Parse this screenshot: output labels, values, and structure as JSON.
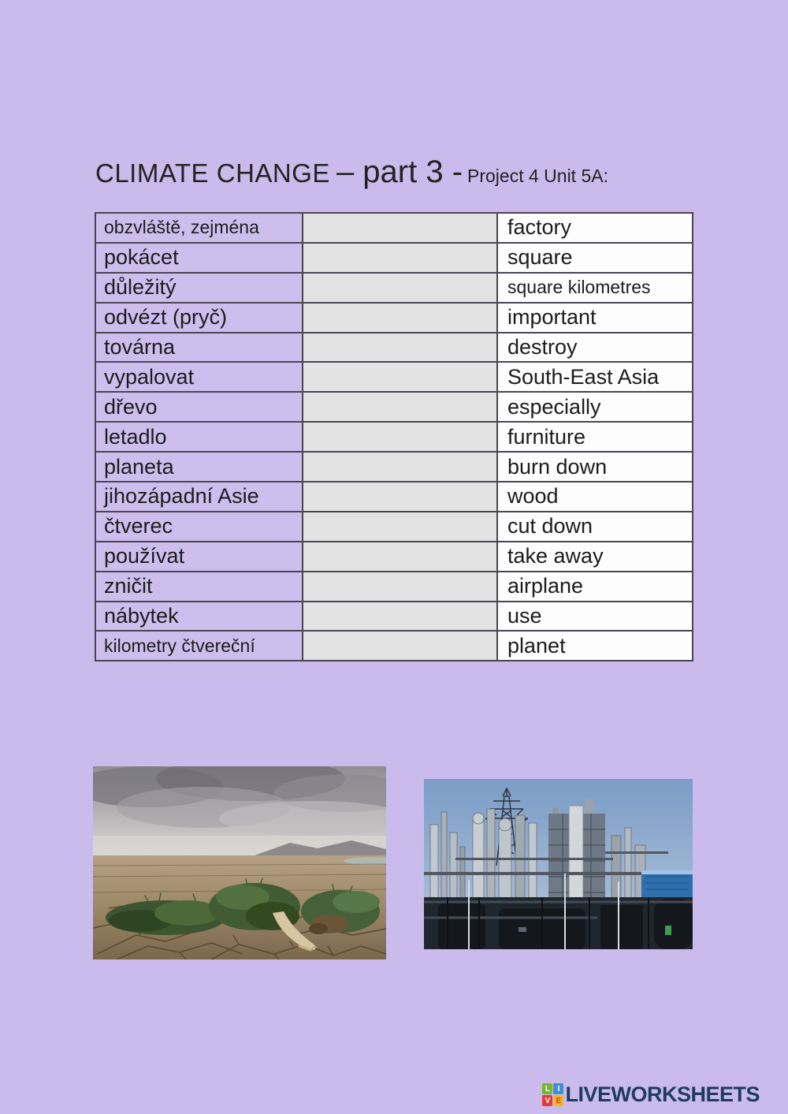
{
  "title": {
    "main": "CLIMATE CHANGE",
    "part": "– part 3 -",
    "subtitle": "Project 4 Unit 5A:"
  },
  "vocab_table": {
    "rows": [
      {
        "czech": "obzvláště, zejména",
        "answer": "",
        "english": "factory",
        "czech_small": true,
        "english_small": false
      },
      {
        "czech": "pokácet",
        "answer": "",
        "english": "square",
        "czech_small": false,
        "english_small": false
      },
      {
        "czech": "důležitý",
        "answer": "",
        "english": "square kilometres",
        "czech_small": false,
        "english_small": true
      },
      {
        "czech": "odvézt (pryč)",
        "answer": "",
        "english": "important",
        "czech_small": false,
        "english_small": false
      },
      {
        "czech": "továrna",
        "answer": "",
        "english": "destroy",
        "czech_small": false,
        "english_small": false
      },
      {
        "czech": "vypalovat",
        "answer": "",
        "english": "South-East Asia",
        "czech_small": false,
        "english_small": false
      },
      {
        "czech": "dřevo",
        "answer": "",
        "english": "especially",
        "czech_small": false,
        "english_small": false
      },
      {
        "czech": "letadlo",
        "answer": "",
        "english": "furniture",
        "czech_small": false,
        "english_small": false
      },
      {
        "czech": "planeta",
        "answer": "",
        "english": "burn down",
        "czech_small": false,
        "english_small": false
      },
      {
        "czech": "jihozápadní Asie",
        "answer": "",
        "english": "wood",
        "czech_small": false,
        "english_small": false
      },
      {
        "czech": "čtverec",
        "answer": "",
        "english": "cut down",
        "czech_small": false,
        "english_small": false
      },
      {
        "czech": "používat",
        "answer": "",
        "english": "take away",
        "czech_small": false,
        "english_small": false
      },
      {
        "czech": "zničit",
        "answer": "",
        "english": "airplane",
        "czech_small": false,
        "english_small": false
      },
      {
        "czech": "nábytek",
        "answer": "",
        "english": "use",
        "czech_small": false,
        "english_small": false
      },
      {
        "czech": "kilometry čtvereční",
        "answer": "",
        "english": "planet",
        "czech_small": true,
        "english_small": false
      }
    ]
  },
  "images": {
    "left": {
      "name": "drought-cracked-earth-grass-figure"
    },
    "right": {
      "name": "industrial-factory-refinery"
    }
  },
  "footer": {
    "brand": "LIVEWORKSHEETS",
    "brand_color": "#1e3c60",
    "tiles": [
      {
        "letter": "L",
        "bg": "#76b82a",
        "fg": "#ffffff"
      },
      {
        "letter": "I",
        "bg": "#3f8fd2",
        "fg": "#ffffff"
      },
      {
        "letter": "V",
        "bg": "#e23b33",
        "fg": "#ffffff"
      },
      {
        "letter": "E",
        "bg": "#f2b722",
        "fg": "#d23c2a"
      }
    ]
  },
  "colors": {
    "page_background": "#cbbaec",
    "cell_purple": "#cdbeee",
    "cell_gray": "#e4e3e3",
    "cell_white": "#fdfdfd",
    "border": "#4b4553"
  }
}
